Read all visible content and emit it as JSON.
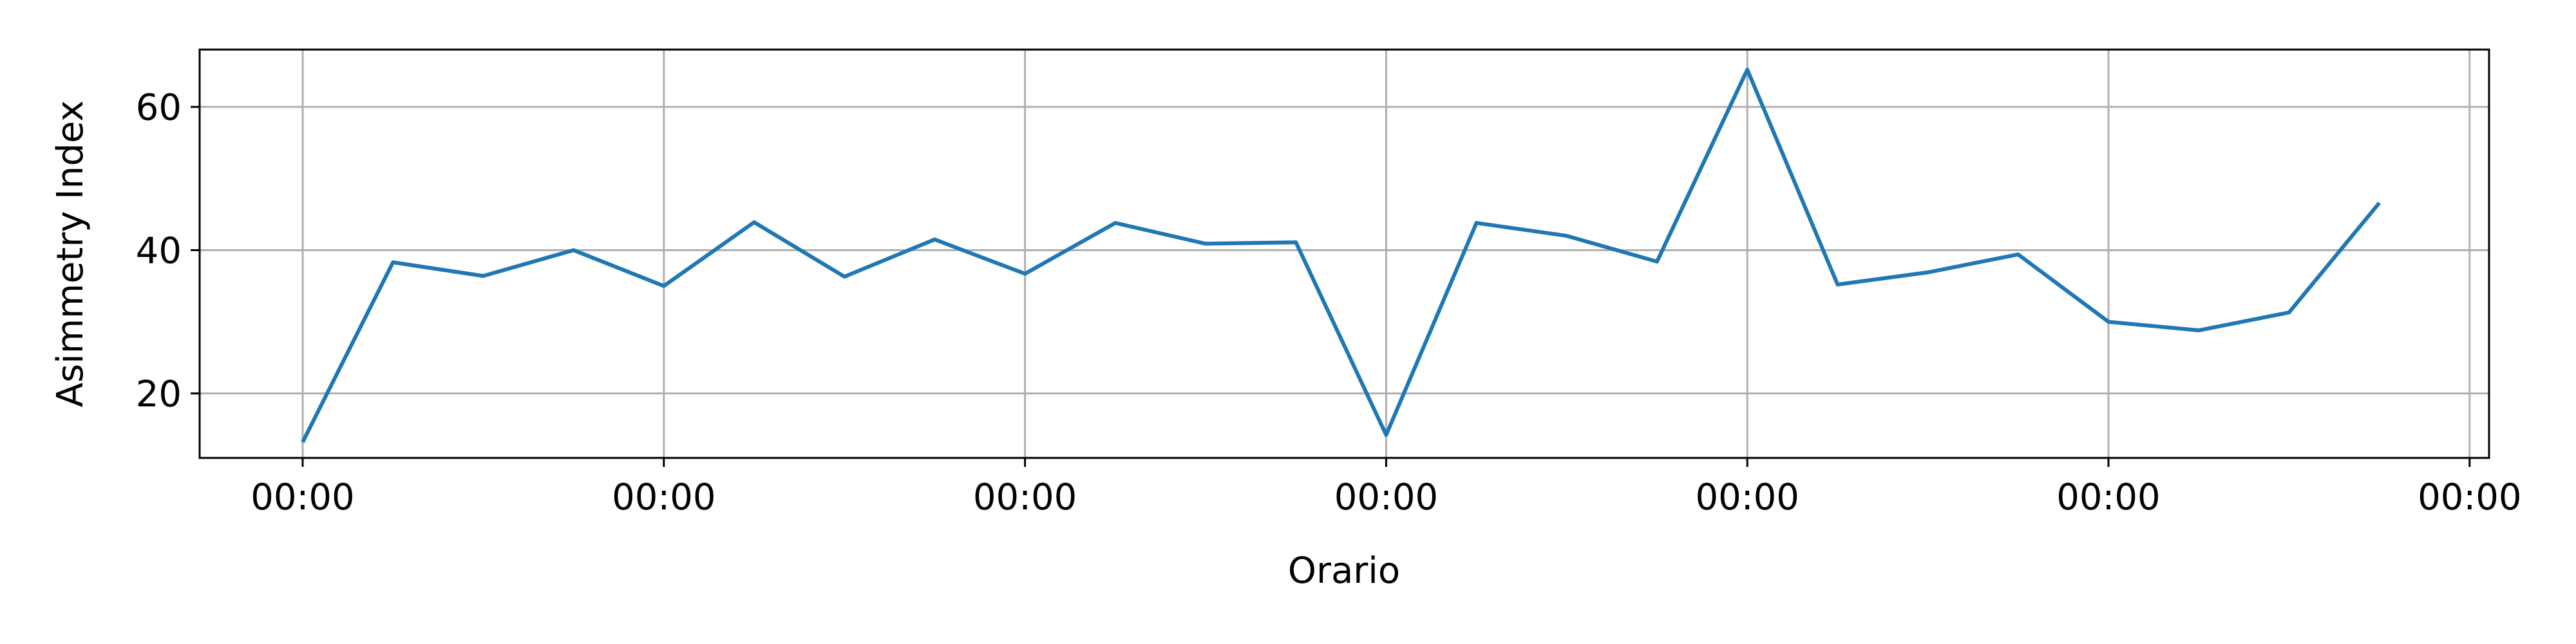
{
  "chart_data": {
    "type": "line",
    "title": "",
    "xlabel": "Orario",
    "ylabel": "Asimmetry Index",
    "x_tick_labels": [
      "00:00",
      "00:00",
      "00:00",
      "00:00",
      "00:00",
      "00:00",
      "00:00"
    ],
    "y_ticks": [
      20,
      40,
      60
    ],
    "ylim": [
      11,
      68
    ],
    "grid": true,
    "series": [
      {
        "color": "#1f77b4",
        "values": [
          13.2,
          38.3,
          36.4,
          40.0,
          35.0,
          43.9,
          36.3,
          41.5,
          36.7,
          43.8,
          40.9,
          41.1,
          14.2,
          43.8,
          42.0,
          38.4,
          65.2,
          35.2,
          36.9,
          39.4,
          30.0,
          28.8,
          31.3,
          46.6
        ]
      }
    ]
  }
}
